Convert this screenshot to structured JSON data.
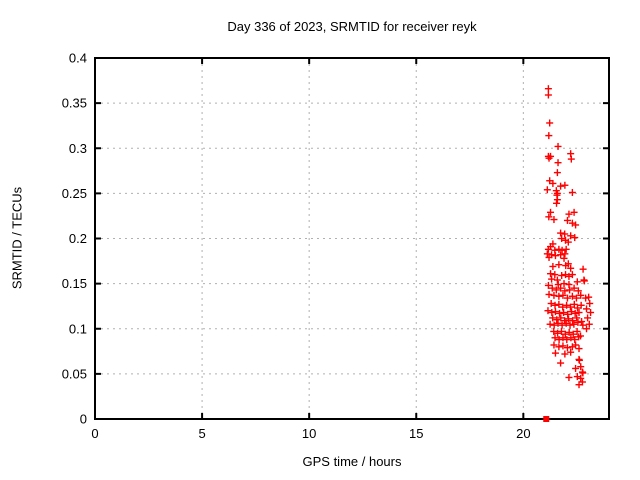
{
  "chart_data": {
    "type": "scatter",
    "title": "Day 336 of 2023, SRMTID for receiver reyk",
    "xlabel": "GPS time / hours",
    "ylabel": "SRMTID / TECUs",
    "xlim": [
      0,
      24
    ],
    "ylim": [
      0,
      0.4
    ],
    "xticks": [
      0,
      5,
      10,
      15,
      20
    ],
    "xtick_labels": [
      "0",
      "5",
      "10",
      "15",
      "20"
    ],
    "yticks": [
      0,
      0.05,
      0.1,
      0.15,
      0.2,
      0.25,
      0.3,
      0.35,
      0.4
    ],
    "ytick_labels": [
      "0",
      "0.05",
      "0.1",
      "0.15",
      "0.2",
      "0.25",
      "0.3",
      "0.35",
      "0.4"
    ],
    "grid": true,
    "grid_color": "#b0b0b0",
    "frame_color": "#000000",
    "legend": "none",
    "series": [
      {
        "name": "srmtid-points",
        "marker": "plus",
        "color": "#ff0000",
        "points": [
          [
            21.17,
            0.366
          ],
          [
            21.17,
            0.359
          ],
          [
            21.23,
            0.328
          ],
          [
            21.19,
            0.314
          ],
          [
            21.62,
            0.302
          ],
          [
            21.27,
            0.291
          ],
          [
            21.17,
            0.291
          ],
          [
            21.2,
            0.289
          ],
          [
            22.21,
            0.294
          ],
          [
            22.24,
            0.288
          ],
          [
            21.62,
            0.284
          ],
          [
            21.59,
            0.273
          ],
          [
            21.23,
            0.264
          ],
          [
            21.38,
            0.261
          ],
          [
            21.74,
            0.258
          ],
          [
            21.94,
            0.259
          ],
          [
            21.12,
            0.254
          ],
          [
            21.54,
            0.253
          ],
          [
            21.59,
            0.25
          ],
          [
            21.57,
            0.248
          ],
          [
            22.29,
            0.251
          ],
          [
            21.59,
            0.243
          ],
          [
            21.55,
            0.239
          ],
          [
            21.27,
            0.229
          ],
          [
            22.13,
            0.227
          ],
          [
            22.37,
            0.229
          ],
          [
            21.19,
            0.224
          ],
          [
            21.43,
            0.221
          ],
          [
            22.06,
            0.22
          ],
          [
            22.29,
            0.217
          ],
          [
            22.44,
            0.215
          ],
          [
            21.74,
            0.206
          ],
          [
            21.93,
            0.205
          ],
          [
            22.21,
            0.203
          ],
          [
            22.4,
            0.201
          ],
          [
            21.79,
            0.2
          ],
          [
            21.97,
            0.198
          ],
          [
            22.1,
            0.196
          ],
          [
            21.38,
            0.194
          ],
          [
            21.27,
            0.191
          ],
          [
            21.17,
            0.188
          ],
          [
            21.47,
            0.187
          ],
          [
            21.66,
            0.188
          ],
          [
            21.81,
            0.187
          ],
          [
            22.0,
            0.188
          ],
          [
            21.12,
            0.183
          ],
          [
            21.32,
            0.182
          ],
          [
            21.5,
            0.181
          ],
          [
            21.74,
            0.182
          ],
          [
            21.94,
            0.183
          ],
          [
            21.2,
            0.179
          ],
          [
            21.9,
            0.178
          ],
          [
            21.38,
            0.169
          ],
          [
            21.66,
            0.171
          ],
          [
            21.98,
            0.17
          ],
          [
            22.1,
            0.172
          ],
          [
            22.21,
            0.167
          ],
          [
            22.79,
            0.166
          ],
          [
            21.27,
            0.161
          ],
          [
            21.47,
            0.16
          ],
          [
            21.79,
            0.159
          ],
          [
            21.97,
            0.16
          ],
          [
            22.13,
            0.158
          ],
          [
            22.29,
            0.16
          ],
          [
            21.32,
            0.155
          ],
          [
            21.59,
            0.154
          ],
          [
            22.52,
            0.152
          ],
          [
            22.83,
            0.154
          ],
          [
            22.85,
            0.153
          ],
          [
            21.63,
            0.149
          ],
          [
            21.9,
            0.15
          ],
          [
            22.13,
            0.149
          ],
          [
            21.17,
            0.148
          ],
          [
            21.35,
            0.145
          ],
          [
            21.54,
            0.143
          ],
          [
            21.74,
            0.145
          ],
          [
            21.94,
            0.142
          ],
          [
            22.16,
            0.143
          ],
          [
            22.37,
            0.145
          ],
          [
            22.57,
            0.142
          ],
          [
            21.2,
            0.138
          ],
          [
            21.43,
            0.137
          ],
          [
            21.66,
            0.136
          ],
          [
            21.85,
            0.137
          ],
          [
            22.29,
            0.136
          ],
          [
            22.68,
            0.137
          ],
          [
            23.05,
            0.135
          ],
          [
            22.06,
            0.134
          ],
          [
            22.48,
            0.134
          ],
          [
            22.91,
            0.134
          ],
          [
            21.3,
            0.128
          ],
          [
            21.48,
            0.126
          ],
          [
            21.66,
            0.127
          ],
          [
            21.84,
            0.124
          ],
          [
            22.02,
            0.126
          ],
          [
            22.2,
            0.124
          ],
          [
            22.38,
            0.127
          ],
          [
            22.53,
            0.123
          ],
          [
            22.7,
            0.126
          ],
          [
            23.1,
            0.128
          ],
          [
            21.15,
            0.12
          ],
          [
            21.33,
            0.118
          ],
          [
            21.5,
            0.119
          ],
          [
            21.69,
            0.117
          ],
          [
            21.88,
            0.118
          ],
          [
            22.07,
            0.116
          ],
          [
            22.25,
            0.119
          ],
          [
            22.42,
            0.117
          ],
          [
            22.6,
            0.118
          ],
          [
            22.95,
            0.122
          ],
          [
            23.14,
            0.118
          ],
          [
            21.37,
            0.112
          ],
          [
            21.56,
            0.11
          ],
          [
            21.75,
            0.112
          ],
          [
            21.93,
            0.109
          ],
          [
            22.11,
            0.111
          ],
          [
            22.3,
            0.109
          ],
          [
            22.49,
            0.112
          ],
          [
            22.72,
            0.108
          ],
          [
            23.0,
            0.112
          ],
          [
            21.25,
            0.105
          ],
          [
            21.44,
            0.104
          ],
          [
            21.62,
            0.106
          ],
          [
            21.81,
            0.104
          ],
          [
            22.0,
            0.106
          ],
          [
            22.18,
            0.104
          ],
          [
            22.36,
            0.105
          ],
          [
            22.55,
            0.107
          ],
          [
            22.78,
            0.104
          ],
          [
            23.08,
            0.105
          ],
          [
            21.42,
            0.097
          ],
          [
            21.6,
            0.095
          ],
          [
            21.78,
            0.097
          ],
          [
            21.96,
            0.094
          ],
          [
            22.14,
            0.096
          ],
          [
            22.33,
            0.094
          ],
          [
            22.51,
            0.097
          ],
          [
            22.67,
            0.092
          ],
          [
            22.95,
            0.1
          ],
          [
            21.48,
            0.09
          ],
          [
            21.67,
            0.088
          ],
          [
            21.85,
            0.09
          ],
          [
            22.03,
            0.088
          ],
          [
            22.22,
            0.09
          ],
          [
            22.4,
            0.088
          ],
          [
            22.58,
            0.091
          ],
          [
            21.43,
            0.082
          ],
          [
            21.66,
            0.08
          ],
          [
            21.85,
            0.081
          ],
          [
            22.06,
            0.079
          ],
          [
            22.29,
            0.08
          ],
          [
            22.44,
            0.082
          ],
          [
            22.6,
            0.078
          ],
          [
            21.5,
            0.073
          ],
          [
            21.94,
            0.072
          ],
          [
            22.21,
            0.074
          ],
          [
            21.74,
            0.062
          ],
          [
            22.6,
            0.066
          ],
          [
            22.62,
            0.065
          ],
          [
            22.44,
            0.056
          ],
          [
            22.68,
            0.058
          ],
          [
            22.76,
            0.052
          ],
          [
            22.78,
            0.051
          ],
          [
            22.13,
            0.046
          ],
          [
            22.52,
            0.047
          ],
          [
            22.68,
            0.045
          ],
          [
            22.76,
            0.041
          ],
          [
            22.6,
            0.038
          ]
        ]
      },
      {
        "name": "zero-value-point",
        "marker": "filled-square",
        "color": "#ff0000",
        "points": [
          [
            21.07,
            0
          ]
        ]
      }
    ]
  }
}
